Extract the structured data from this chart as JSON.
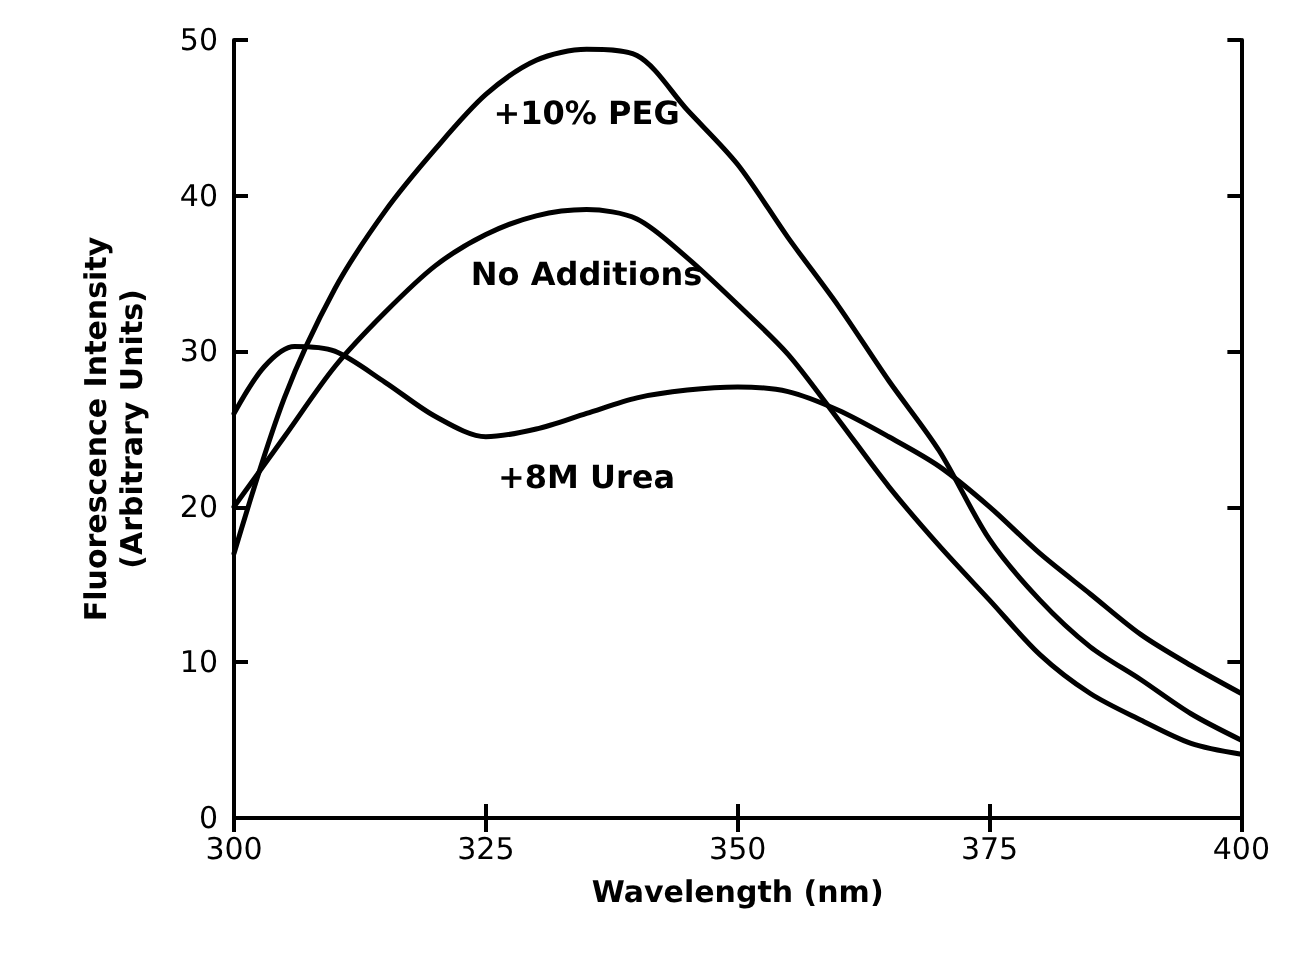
{
  "chart_data": {
    "type": "line",
    "xlabel": "Wavelength (nm)",
    "ylabel": "Fluorescence Intensity\n(Arbitrary Units)",
    "xlim": [
      300,
      400
    ],
    "xticks": [
      300,
      325,
      350,
      375,
      400
    ],
    "ylim": [
      0,
      50
    ],
    "yticks": [
      0,
      10,
      20,
      30,
      40,
      50
    ],
    "grid": false,
    "marker": "none",
    "line_style": "solid",
    "series": [
      {
        "name": "+10% PEG",
        "color": "#000000",
        "x": [
          300,
          305,
          310,
          315,
          320,
          325,
          330,
          335,
          340,
          345,
          350,
          355,
          360,
          365,
          370,
          375,
          380,
          385,
          390,
          395,
          400
        ],
        "values": [
          17,
          27,
          34,
          39,
          43,
          46.5,
          48.7,
          49.4,
          49,
          45.5,
          42,
          37.3,
          32.9,
          28.1,
          23.6,
          17.9,
          14,
          11,
          8.9,
          6.7,
          5
        ]
      },
      {
        "name": "No Additions",
        "color": "#000000",
        "x": [
          300,
          305,
          310,
          315,
          320,
          325,
          330,
          335,
          340,
          345,
          350,
          355,
          360,
          365,
          370,
          375,
          380,
          385,
          390,
          395,
          400
        ],
        "values": [
          20,
          24.5,
          29,
          32.5,
          35.5,
          37.5,
          38.7,
          39.1,
          38.5,
          36,
          33,
          29.8,
          25.6,
          21.3,
          17.5,
          14,
          10.5,
          8,
          6.3,
          4.8,
          4.1
        ]
      },
      {
        "name": "+8M Urea",
        "color": "#000000",
        "x": [
          300,
          303,
          306,
          310,
          315,
          320,
          325,
          330,
          335,
          340,
          345,
          350,
          355,
          360,
          365,
          370,
          375,
          380,
          385,
          390,
          395,
          400
        ],
        "values": [
          26,
          29,
          30.3,
          30,
          28,
          25.8,
          24.5,
          25,
          26,
          27,
          27.5,
          27.7,
          27.4,
          26.2,
          24.5,
          22.6,
          20,
          17,
          14.4,
          11.8,
          9.8,
          8
        ]
      }
    ]
  }
}
